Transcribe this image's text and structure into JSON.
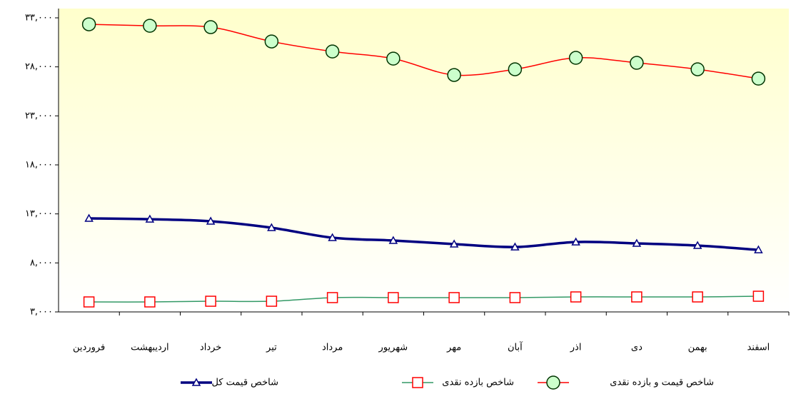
{
  "chart_data": {
    "type": "line",
    "categories": [
      "فروردین",
      "اردیبهشت",
      "خرداد",
      "تیر",
      "مرداد",
      "شهریور",
      "مهر",
      "آبان",
      "اذر",
      "دی",
      "بهمن",
      "اسفند"
    ],
    "series": [
      {
        "name": "شاخص قیمت و بازده نقدی",
        "color": "#ff0000",
        "marker": "circle",
        "marker_fill": "#ccffcc",
        "marker_stroke": "#003300",
        "values": [
          32340,
          32190,
          32050,
          30590,
          29570,
          28840,
          27170,
          27750,
          28920,
          28410,
          27750,
          26800
        ]
      },
      {
        "name": "شاخص بازده نقدی",
        "color": "#339966",
        "marker": "square",
        "marker_fill": "#ffffff",
        "marker_stroke": "#ff0000",
        "values": [
          4020,
          4020,
          4090,
          4090,
          4460,
          4460,
          4460,
          4460,
          4530,
          4530,
          4530,
          4600
        ]
      },
      {
        "name": "شاخص قیمت کل",
        "color": "#000080",
        "marker": "triangle",
        "marker_fill": "#ffffff",
        "marker_stroke": "#000080",
        "values": [
          12540,
          12460,
          12250,
          11590,
          10570,
          10280,
          9920,
          9620,
          10130,
          9990,
          9770,
          9330
        ]
      }
    ],
    "ylim": [
      3000,
      33000
    ],
    "yticks": [
      {
        "value": 3000,
        "label": "۳,۰۰۰"
      },
      {
        "value": 8000,
        "label": "۸,۰۰۰"
      },
      {
        "value": 13000,
        "label": "۱۳,۰۰۰"
      },
      {
        "value": 18000,
        "label": "۱۸,۰۰۰"
      },
      {
        "value": 23000,
        "label": "۲۳,۰۰۰"
      },
      {
        "value": 28000,
        "label": "۲۸,۰۰۰"
      },
      {
        "value": 33000,
        "label": "۳۳,۰۰۰"
      }
    ]
  }
}
